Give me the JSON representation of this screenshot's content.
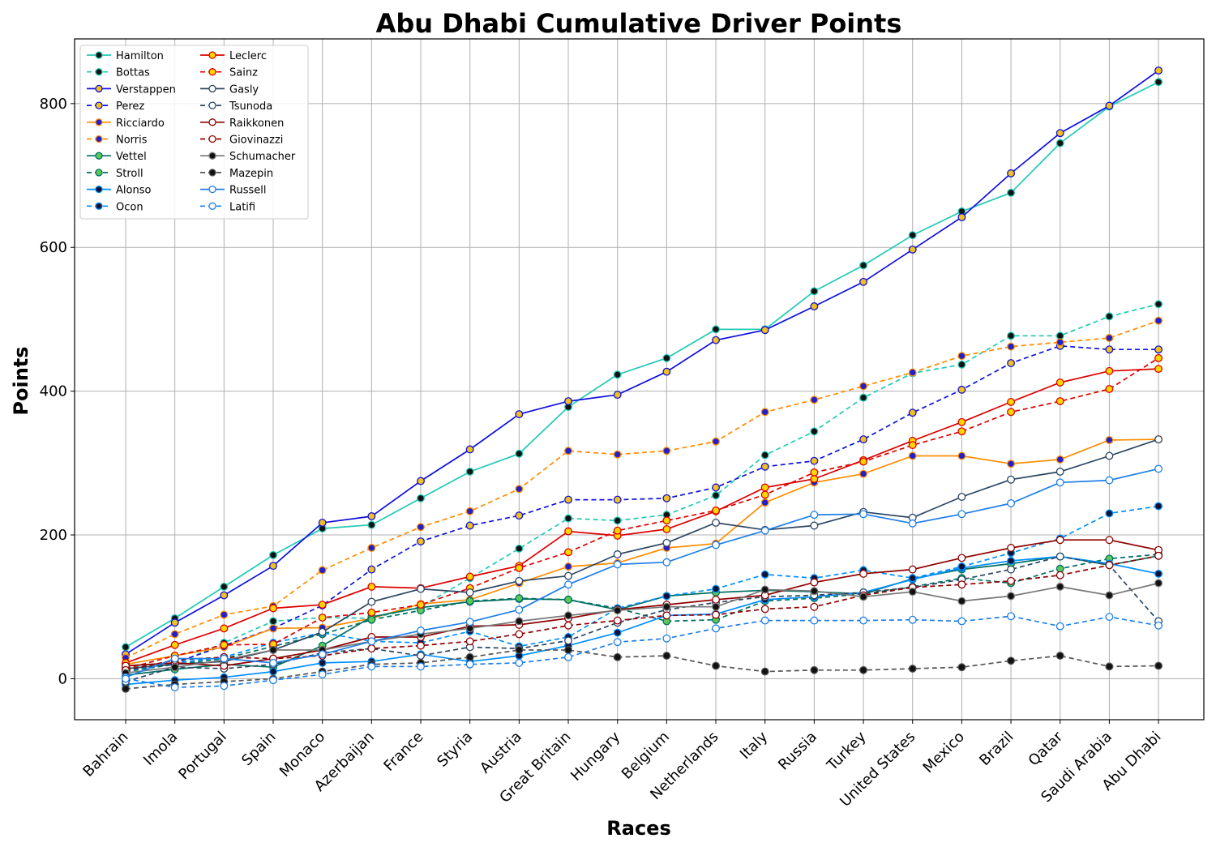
{
  "chart_data": {
    "type": "line",
    "title": "Abu Dhabi Cumulative Driver Points",
    "xlabel": "Races",
    "ylabel": "Points",
    "ylim": [
      -57,
      890
    ],
    "yticks": [
      0,
      200,
      400,
      600,
      800
    ],
    "grid": true,
    "legend_position": "top-left",
    "categories": [
      "Bahrain",
      "Imola",
      "Portugal",
      "Spain",
      "Monaco",
      "Azerbaijan",
      "France",
      "Styria",
      "Austria",
      "Great Britain",
      "Hungary",
      "Belgium",
      "Netherlands",
      "Italy",
      "Russia",
      "Turkey",
      "United States",
      "Mexico",
      "Brazil",
      "Qatar",
      "Saudi Arabia",
      "Abu Dhabi"
    ],
    "series": [
      {
        "name": "Hamilton",
        "color": "#20c9b5",
        "dashed": false,
        "marker_fill": "#111111",
        "values": [
          44,
          84,
          128,
          172,
          209,
          214,
          251,
          288,
          313,
          378,
          423,
          446,
          486,
          486,
          539,
          575,
          617,
          650,
          676,
          745,
          796,
          830
        ]
      },
      {
        "name": "Bottas",
        "color": "#20c9b5",
        "dashed": true,
        "marker_fill": "#111111",
        "values": [
          16,
          20,
          50,
          80,
          85,
          84,
          100,
          140,
          181,
          223,
          220,
          228,
          255,
          311,
          344,
          391,
          425,
          437,
          477,
          477,
          504,
          521
        ]
      },
      {
        "name": "Verstappen",
        "color": "#1010dd",
        "dashed": false,
        "marker_fill": "#f0c020",
        "values": [
          34,
          78,
          116,
          157,
          217,
          226,
          275,
          319,
          368,
          386,
          395,
          427,
          471,
          485,
          518,
          552,
          597,
          642,
          703,
          759,
          797,
          846
        ]
      },
      {
        "name": "Perez",
        "color": "#1010dd",
        "dashed": true,
        "marker_fill": "#f0c020",
        "values": [
          10,
          22,
          46,
          70,
          102,
          152,
          191,
          213,
          227,
          249,
          249,
          251,
          266,
          295,
          303,
          333,
          370,
          402,
          439,
          463,
          458,
          458
        ]
      },
      {
        "name": "Ricciardo",
        "color": "#ff8c00",
        "dashed": false,
        "marker_fill": "#2020cc",
        "values": [
          20,
          32,
          44,
          70,
          71,
          84,
          104,
          110,
          133,
          156,
          161,
          182,
          188,
          245,
          273,
          285,
          310,
          310,
          299,
          305,
          332,
          333
        ]
      },
      {
        "name": "Norris",
        "color": "#ff8c00",
        "dashed": true,
        "marker_fill": "#2020cc",
        "values": [
          29,
          62,
          89,
          101,
          151,
          182,
          211,
          233,
          264,
          317,
          312,
          317,
          330,
          371,
          388,
          407,
          426,
          449,
          462,
          468,
          474,
          498
        ]
      },
      {
        "name": "Vettel",
        "color": "#006f62",
        "dashed": false,
        "marker_fill": "#5ac85a",
        "values": [
          5,
          13,
          20,
          16,
          46,
          86,
          99,
          107,
          111,
          110,
          96,
          115,
          120,
          123,
          121,
          118,
          139,
          152,
          160,
          170,
          158,
          171
        ]
      },
      {
        "name": "Stroll",
        "color": "#006f62",
        "dashed": true,
        "marker_fill": "#5ac85a",
        "values": [
          10,
          20,
          28,
          45,
          62,
          82,
          95,
          108,
          112,
          110,
          98,
          80,
          82,
          108,
          112,
          118,
          128,
          140,
          133,
          153,
          167,
          173
        ]
      },
      {
        "name": "Alonso",
        "color": "#0090ff",
        "dashed": false,
        "marker_fill": "#111133",
        "values": [
          -8,
          -2,
          2,
          10,
          22,
          24,
          34,
          24,
          32,
          46,
          64,
          88,
          90,
          110,
          114,
          120,
          138,
          154,
          164,
          170,
          160,
          146
        ]
      },
      {
        "name": "Ocon",
        "color": "#0090ff",
        "dashed": true,
        "marker_fill": "#111133",
        "values": [
          12,
          22,
          30,
          50,
          64,
          52,
          50,
          66,
          45,
          58,
          98,
          115,
          125,
          145,
          140,
          151,
          140,
          156,
          175,
          195,
          230,
          240
        ]
      },
      {
        "name": "Leclerc",
        "color": "#dd0000",
        "dashed": false,
        "marker_fill": "#ffd700",
        "values": [
          22,
          47,
          70,
          98,
          103,
          128,
          126,
          142,
          157,
          205,
          199,
          208,
          233,
          266,
          278,
          304,
          331,
          357,
          385,
          412,
          428,
          431
        ]
      },
      {
        "name": "Sainz",
        "color": "#dd0000",
        "dashed": true,
        "marker_fill": "#ffd700",
        "values": [
          14,
          32,
          47,
          48,
          85,
          92,
          103,
          126,
          154,
          176,
          206,
          220,
          234,
          256,
          287,
          302,
          325,
          344,
          371,
          386,
          403,
          446
        ]
      },
      {
        "name": "Gasly",
        "color": "#2b4562",
        "dashed": false,
        "marker_fill": "#ffffff",
        "values": [
          14,
          20,
          24,
          40,
          65,
          107,
          125,
          120,
          136,
          143,
          173,
          189,
          217,
          207,
          213,
          232,
          224,
          253,
          277,
          288,
          310,
          333
        ]
      },
      {
        "name": "Tsunoda",
        "color": "#2b4562",
        "dashed": true,
        "marker_fill": "#ffffff",
        "values": [
          -4,
          16,
          14,
          20,
          36,
          42,
          32,
          44,
          42,
          53,
          78,
          96,
          106,
          114,
          116,
          120,
          127,
          138,
          152,
          170,
          158,
          80
        ]
      },
      {
        "name": "Raikkonen",
        "color": "#900000",
        "dashed": false,
        "marker_fill": "#ffffff",
        "values": [
          18,
          22,
          18,
          28,
          40,
          58,
          58,
          73,
          75,
          84,
          96,
          103,
          110,
          116,
          134,
          146,
          152,
          168,
          182,
          193,
          193,
          179
        ]
      },
      {
        "name": "Giovinazzi",
        "color": "#900000",
        "dashed": true,
        "marker_fill": "#ffffff",
        "values": [
          12,
          26,
          30,
          28,
          32,
          42,
          46,
          52,
          62,
          74,
          81,
          88,
          89,
          97,
          100,
          116,
          127,
          131,
          136,
          144,
          158,
          171
        ]
      },
      {
        "name": "Schumacher",
        "color": "#777777",
        "dashed": false,
        "marker_fill": "#111111",
        "values": [
          8,
          16,
          26,
          40,
          40,
          52,
          62,
          70,
          80,
          88,
          95,
          100,
          100,
          124,
          122,
          114,
          121,
          108,
          115,
          128,
          116,
          133
        ]
      },
      {
        "name": "Mazepin",
        "color": "#555555",
        "dashed": true,
        "marker_fill": "#111111",
        "values": [
          -14,
          -8,
          -4,
          0,
          10,
          20,
          22,
          30,
          40,
          40,
          30,
          32,
          18,
          10,
          12,
          12,
          14,
          16,
          25,
          32,
          17,
          18
        ]
      },
      {
        "name": "Russell",
        "color": "#1e7fe8",
        "dashed": false,
        "marker_fill": "#ffffff",
        "values": [
          2,
          28,
          28,
          22,
          34,
          52,
          67,
          79,
          96,
          131,
          159,
          162,
          186,
          206,
          228,
          229,
          216,
          229,
          244,
          273,
          276,
          292
        ]
      },
      {
        "name": "Latifi",
        "color": "#1e7fe8",
        "dashed": true,
        "marker_fill": "#ffffff",
        "values": [
          0,
          -12,
          -10,
          -2,
          6,
          17,
          17,
          20,
          22,
          30,
          51,
          56,
          70,
          81,
          81,
          81,
          82,
          80,
          87,
          73,
          86,
          74
        ]
      }
    ]
  }
}
